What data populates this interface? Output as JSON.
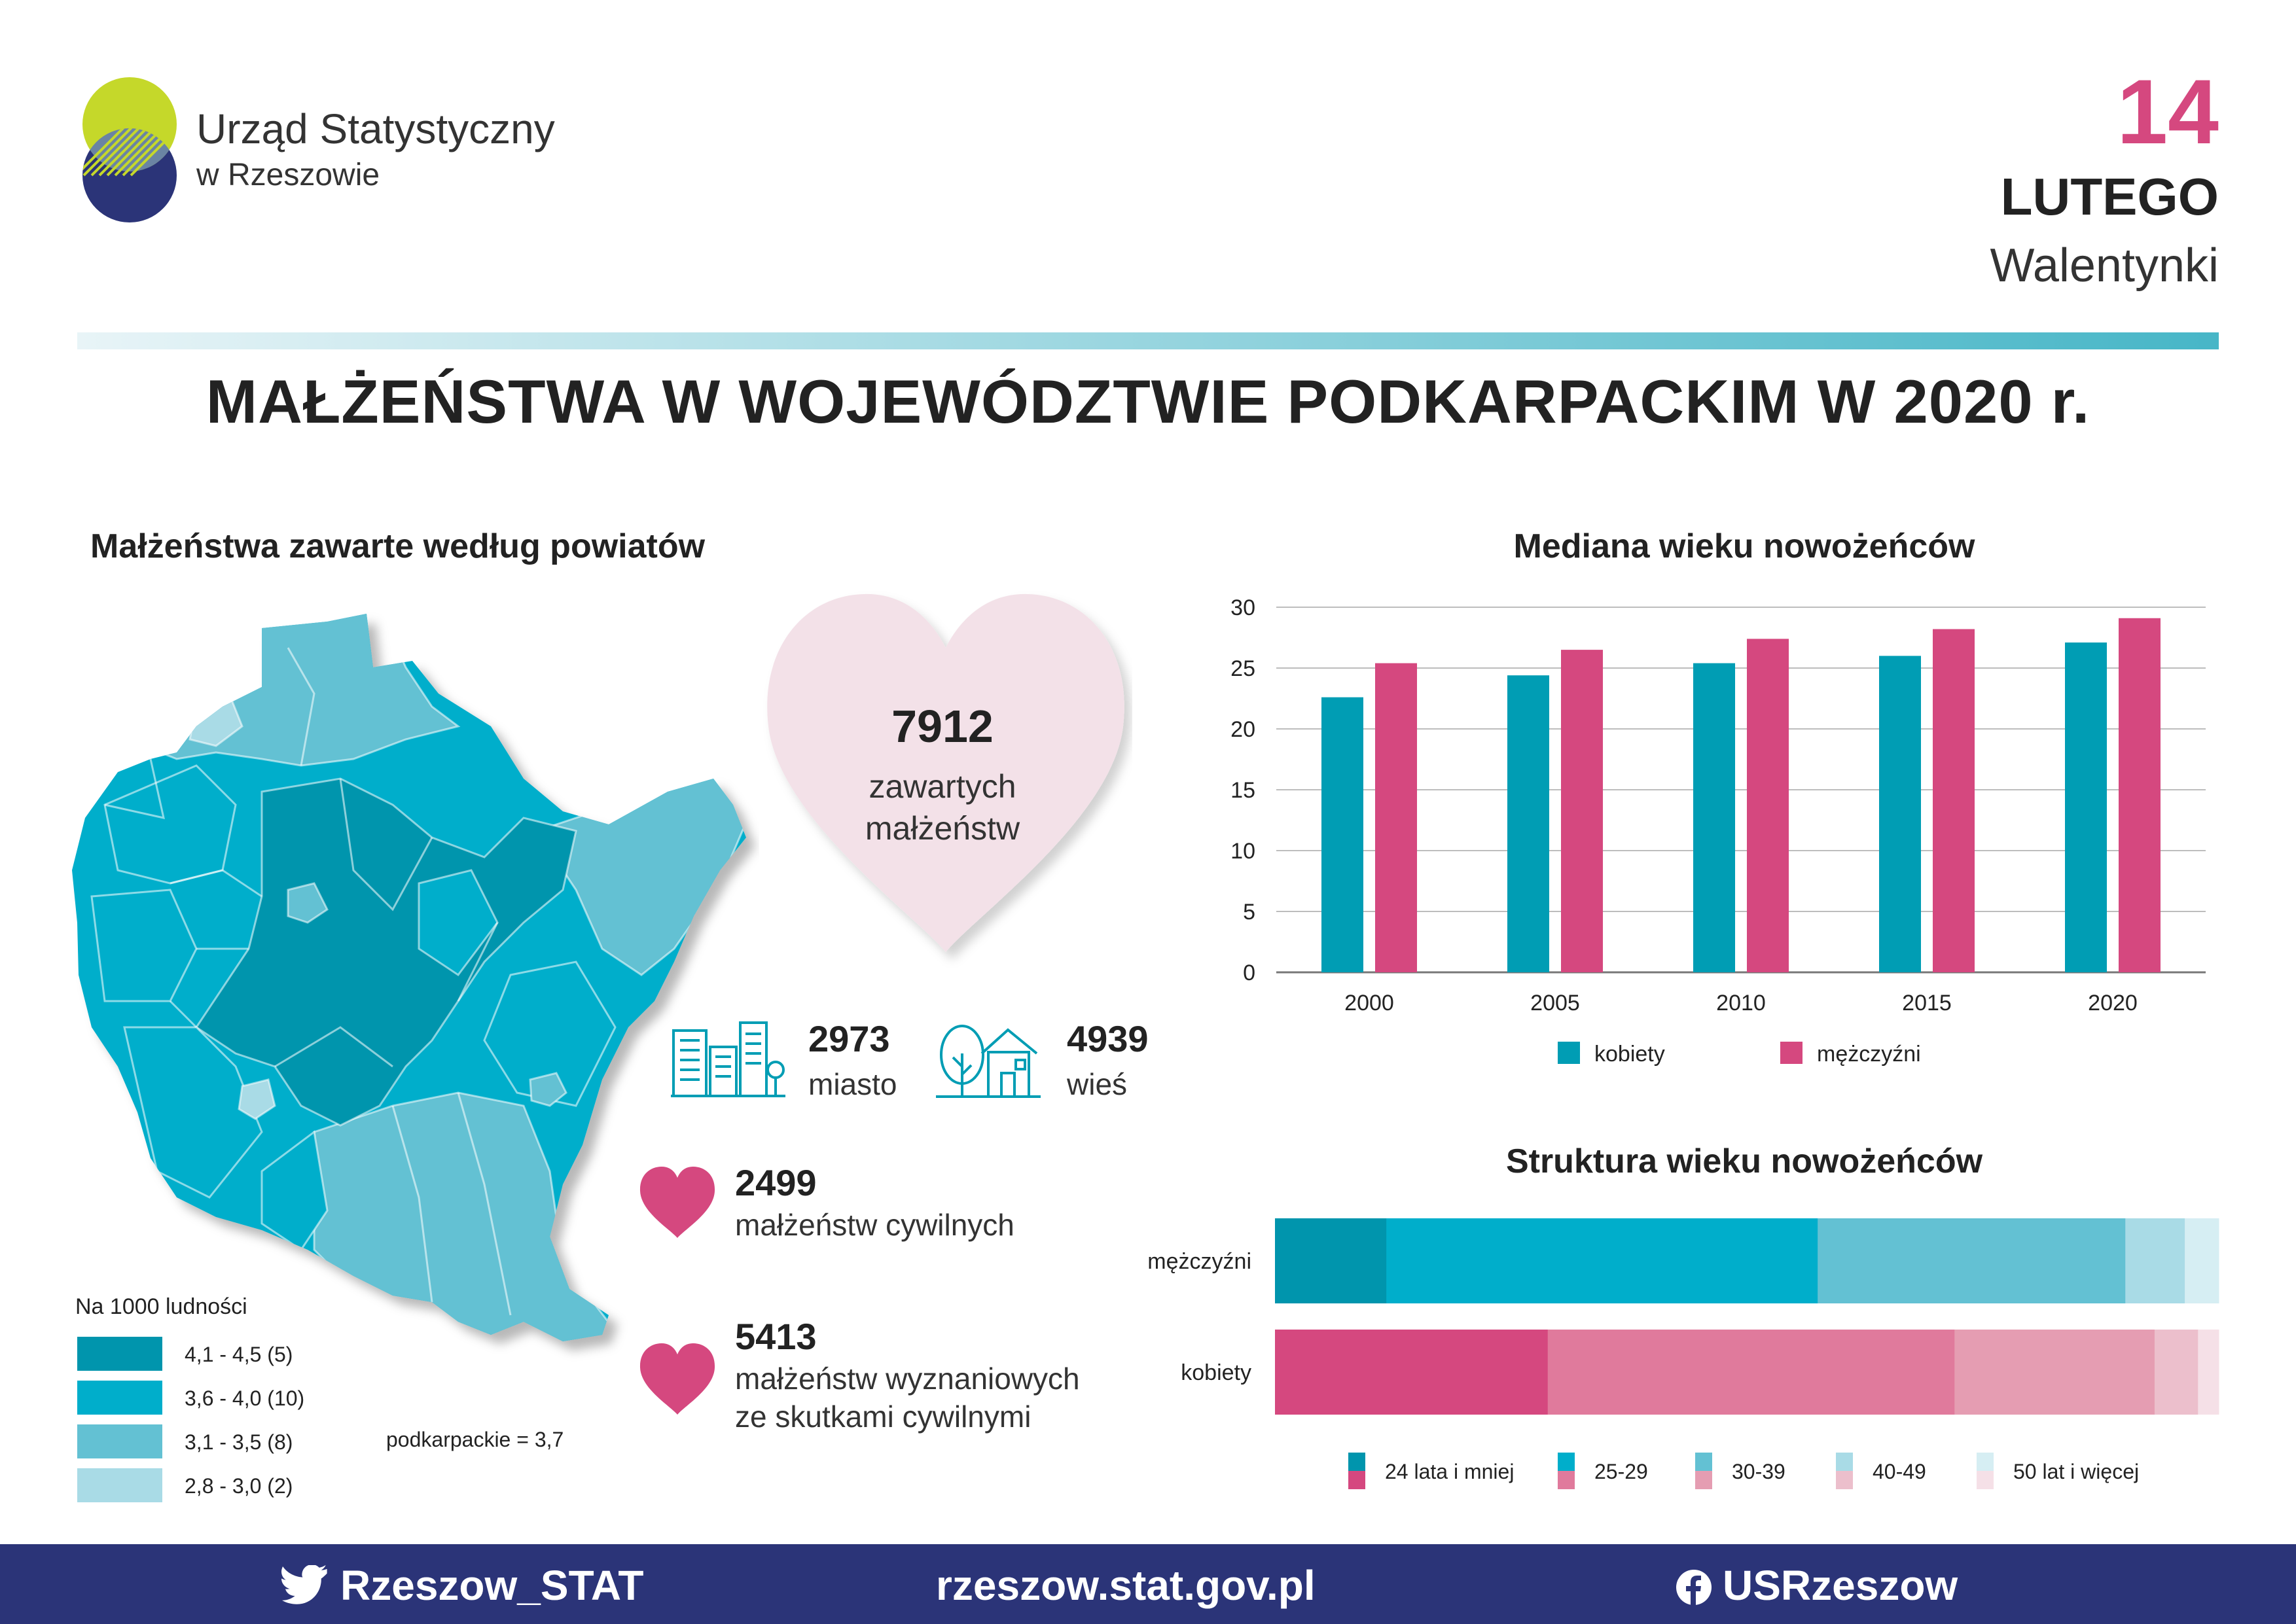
{
  "header": {
    "org_line1": "Urząd Statystyczny",
    "org_line2": "w Rzeszowie",
    "date_day": "14",
    "date_month": "LUTEGO",
    "date_event": "Walentynki",
    "colors": {
      "pink": "#d5487f",
      "teal": "#009db4",
      "navy": "#2b3478",
      "lime": "#c5d82a"
    }
  },
  "main_title": "MAŁŻEŃSTWA W WOJEWÓDZTWIE PODKARPACKIM W 2020 r.",
  "map_section": {
    "title": "Małżeństwa zawarte według powiatów",
    "legend_title": "Na 1000 ludności",
    "legend": [
      {
        "label": "4,1 - 4,5 (5)",
        "color": "#0095ad"
      },
      {
        "label": "3,6 - 4,0 (10)",
        "color": "#00aecb"
      },
      {
        "label": "3,1 - 3,5 (8)",
        "color": "#63c1d3"
      },
      {
        "label": "2,8 - 3,0 (2)",
        "color": "#a9dbe6"
      }
    ],
    "regional_note": "podkarpackie = 3,7"
  },
  "summary": {
    "total_value": "7912",
    "total_label_1": "zawartych",
    "total_label_2": "małżeństw",
    "city_value": "2973",
    "city_label": "miasto",
    "village_value": "4939",
    "village_label": "wieś",
    "civil_value": "2499",
    "civil_label": "małżeństw cywilnych",
    "religious_value": "5413",
    "religious_label_1": "małżeństw wyznaniowych",
    "religious_label_2": "ze skutkami cywilnymi"
  },
  "chart_data": [
    {
      "type": "bar",
      "title": "Mediana wieku nowożeńców",
      "categories": [
        "2000",
        "2005",
        "2010",
        "2015",
        "2020"
      ],
      "series": [
        {
          "name": "kobiety",
          "values": [
            22.6,
            24.4,
            25.4,
            26.0,
            27.1
          ],
          "color": "#009db4"
        },
        {
          "name": "mężczyźni",
          "values": [
            25.4,
            26.5,
            27.4,
            28.2,
            29.1
          ],
          "color": "#d5487f"
        }
      ],
      "ylim": [
        0,
        30
      ],
      "yticks": [
        "0",
        "5",
        "10",
        "15",
        "20",
        "25",
        "30"
      ],
      "grid": true,
      "legend_position": "bottom"
    },
    {
      "type": "bar",
      "stacked": true,
      "orientation": "horizontal",
      "title": "Struktura wieku nowożeńców",
      "categories": [
        "mężczyźni",
        "kobiety"
      ],
      "segments": [
        "24 lata i mniej",
        "25-29",
        "30-39",
        "40-49",
        "50 lat i więcej"
      ],
      "values_percent": {
        "mężczyźni": [
          11.8,
          45.7,
          32.6,
          6.3,
          3.6
        ],
        "kobiety": [
          28.9,
          43.1,
          21.2,
          4.6,
          2.2
        ]
      },
      "colors": {
        "mężczyźni": [
          "#0095ad",
          "#00aecb",
          "#63c1d3",
          "#a9dbe6",
          "#d6eef3"
        ],
        "kobiety": [
          "#d5487f",
          "#e07a9c",
          "#e59db2",
          "#ecbfcc",
          "#f5e0e7"
        ]
      },
      "legend_position": "bottom"
    }
  ],
  "footer": {
    "twitter": "Rzeszow_STAT",
    "website": "rzeszow.stat.gov.pl",
    "facebook": "USRzeszow"
  }
}
